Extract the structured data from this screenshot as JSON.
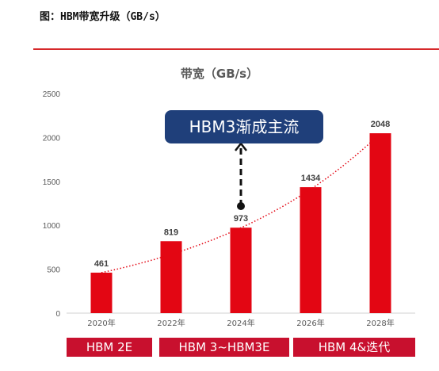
{
  "figure_title": "图：HBM带宽升级（GB/s）",
  "colors": {
    "accent": "#e30613",
    "band": "#c8102e",
    "callout": "#1f3f7a",
    "rule": "#d6282a"
  },
  "chart_data": {
    "type": "bar",
    "title": "带宽（GB/s）",
    "categories": [
      "2020年",
      "2022年",
      "2024年",
      "2026年",
      "2028年"
    ],
    "values": [
      461,
      819,
      973,
      1434,
      2048
    ],
    "data_labels": [
      "461",
      "819",
      "973",
      "1434",
      "2048"
    ],
    "ylim": [
      0,
      2500
    ],
    "yticks": [
      0,
      500,
      1000,
      1500,
      2000,
      2500
    ],
    "grid": false,
    "trendline": "exponential, dotted red",
    "annotation": "HBM3渐成主流",
    "bands": [
      {
        "label": "HBM 2E"
      },
      {
        "label": "HBM 3~HBM3E"
      },
      {
        "label": "HBM 4&迭代"
      }
    ]
  }
}
